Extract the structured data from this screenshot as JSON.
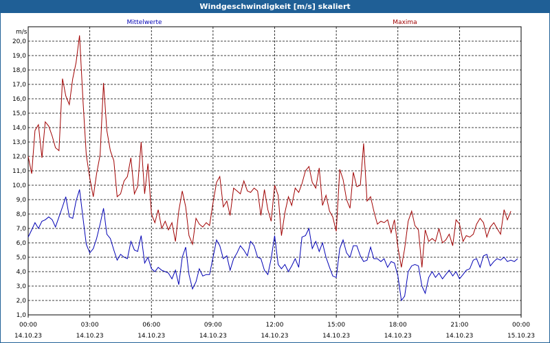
{
  "window": {
    "title": "Windgeschwindigkeit [m/s] skaliert"
  },
  "colors": {
    "titlebar": "#1f5f96",
    "mean": "#0000b4",
    "max": "#a00000",
    "grid": "#000000"
  },
  "chart_data": {
    "type": "line",
    "title": "Windgeschwindigkeit [m/s] skaliert",
    "ylabel": "m/s",
    "xlabel": "",
    "ylim": [
      1.0,
      21.0
    ],
    "y_ticks": [
      "1,0",
      "2,0",
      "3,0",
      "4,0",
      "5,0",
      "6,0",
      "7,0",
      "8,0",
      "9,0",
      "10,0",
      "11,0",
      "12,0",
      "13,0",
      "14,0",
      "15,0",
      "16,0",
      "17,0",
      "18,0",
      "19,0",
      "20,0"
    ],
    "x_ticks": [
      {
        "time": "00:00",
        "date": "14.10.23"
      },
      {
        "time": "03:00",
        "date": "14.10.23"
      },
      {
        "time": "06:00",
        "date": "14.10.23"
      },
      {
        "time": "09:00",
        "date": "14.10.23"
      },
      {
        "time": "12:00",
        "date": "14.10.23"
      },
      {
        "time": "15:00",
        "date": "14.10.23"
      },
      {
        "time": "18:00",
        "date": "14.10.23"
      },
      {
        "time": "21:00",
        "date": "14.10.23"
      },
      {
        "time": "00:00",
        "date": "15.10.23"
      }
    ],
    "x_hours_range": [
      0,
      24
    ],
    "grid": true,
    "legend_position": "top",
    "series": [
      {
        "name": "Mittelwerte",
        "color": "#0000b4",
        "points": [
          [
            0.0,
            6.4
          ],
          [
            0.17,
            6.9
          ],
          [
            0.33,
            7.4
          ],
          [
            0.5,
            7.0
          ],
          [
            0.67,
            7.5
          ],
          [
            0.83,
            7.6
          ],
          [
            1.0,
            7.8
          ],
          [
            1.17,
            7.6
          ],
          [
            1.33,
            7.1
          ],
          [
            1.5,
            7.8
          ],
          [
            1.67,
            8.5
          ],
          [
            1.83,
            9.2
          ],
          [
            2.0,
            7.8
          ],
          [
            2.17,
            7.7
          ],
          [
            2.33,
            8.9
          ],
          [
            2.5,
            9.7
          ],
          [
            2.67,
            7.7
          ],
          [
            2.83,
            5.9
          ],
          [
            3.0,
            5.3
          ],
          [
            3.17,
            5.6
          ],
          [
            3.33,
            6.3
          ],
          [
            3.5,
            7.3
          ],
          [
            3.67,
            8.4
          ],
          [
            3.83,
            6.6
          ],
          [
            4.0,
            6.3
          ],
          [
            4.17,
            5.5
          ],
          [
            4.33,
            4.8
          ],
          [
            4.5,
            5.2
          ],
          [
            4.67,
            5.0
          ],
          [
            4.83,
            4.9
          ],
          [
            5.0,
            6.1
          ],
          [
            5.17,
            5.5
          ],
          [
            5.33,
            5.4
          ],
          [
            5.5,
            6.5
          ],
          [
            5.67,
            4.6
          ],
          [
            5.83,
            5.0
          ],
          [
            6.0,
            4.2
          ],
          [
            6.17,
            4.0
          ],
          [
            6.33,
            4.3
          ],
          [
            6.5,
            4.1
          ],
          [
            6.67,
            4.0
          ],
          [
            6.83,
            3.9
          ],
          [
            7.0,
            3.5
          ],
          [
            7.17,
            4.1
          ],
          [
            7.33,
            3.1
          ],
          [
            7.5,
            5.0
          ],
          [
            7.67,
            5.7
          ],
          [
            7.83,
            3.8
          ],
          [
            8.0,
            2.8
          ],
          [
            8.17,
            3.3
          ],
          [
            8.33,
            4.2
          ],
          [
            8.5,
            3.7
          ],
          [
            8.67,
            3.8
          ],
          [
            8.83,
            3.8
          ],
          [
            9.0,
            5.0
          ],
          [
            9.17,
            6.2
          ],
          [
            9.33,
            5.8
          ],
          [
            9.5,
            4.9
          ],
          [
            9.67,
            5.1
          ],
          [
            9.83,
            4.1
          ],
          [
            10.0,
            4.9
          ],
          [
            10.17,
            5.3
          ],
          [
            10.33,
            5.8
          ],
          [
            10.5,
            5.5
          ],
          [
            10.67,
            5.1
          ],
          [
            10.83,
            6.1
          ],
          [
            11.0,
            5.8
          ],
          [
            11.17,
            5.0
          ],
          [
            11.33,
            4.9
          ],
          [
            11.5,
            4.1
          ],
          [
            11.67,
            3.8
          ],
          [
            11.83,
            4.9
          ],
          [
            12.0,
            6.5
          ],
          [
            12.17,
            4.5
          ],
          [
            12.33,
            4.2
          ],
          [
            12.5,
            4.5
          ],
          [
            12.67,
            4.0
          ],
          [
            12.83,
            4.4
          ],
          [
            13.0,
            4.9
          ],
          [
            13.17,
            4.3
          ],
          [
            13.33,
            6.4
          ],
          [
            13.5,
            6.5
          ],
          [
            13.67,
            7.0
          ],
          [
            13.83,
            5.6
          ],
          [
            14.0,
            6.1
          ],
          [
            14.17,
            5.4
          ],
          [
            14.33,
            6.0
          ],
          [
            14.5,
            5.0
          ],
          [
            14.67,
            4.3
          ],
          [
            14.83,
            3.7
          ],
          [
            15.0,
            3.6
          ],
          [
            15.17,
            5.6
          ],
          [
            15.33,
            6.2
          ],
          [
            15.5,
            5.3
          ],
          [
            15.67,
            5.0
          ],
          [
            15.83,
            5.8
          ],
          [
            16.0,
            5.8
          ],
          [
            16.17,
            5.1
          ],
          [
            16.33,
            4.7
          ],
          [
            16.5,
            4.8
          ],
          [
            16.67,
            5.7
          ],
          [
            16.83,
            4.9
          ],
          [
            17.0,
            4.9
          ],
          [
            17.17,
            4.7
          ],
          [
            17.33,
            4.9
          ],
          [
            17.5,
            4.3
          ],
          [
            17.67,
            4.7
          ],
          [
            17.83,
            4.6
          ],
          [
            18.0,
            3.7
          ],
          [
            18.17,
            2.0
          ],
          [
            18.33,
            2.3
          ],
          [
            18.5,
            4.0
          ],
          [
            18.67,
            4.4
          ],
          [
            18.83,
            4.5
          ],
          [
            19.0,
            4.4
          ],
          [
            19.17,
            3.0
          ],
          [
            19.33,
            2.5
          ],
          [
            19.5,
            3.6
          ],
          [
            19.67,
            4.0
          ],
          [
            19.83,
            3.6
          ],
          [
            20.0,
            3.9
          ],
          [
            20.17,
            3.5
          ],
          [
            20.33,
            3.8
          ],
          [
            20.5,
            4.1
          ],
          [
            20.67,
            3.7
          ],
          [
            20.83,
            4.0
          ],
          [
            21.0,
            3.5
          ],
          [
            21.17,
            3.8
          ],
          [
            21.33,
            4.1
          ],
          [
            21.5,
            4.2
          ],
          [
            21.67,
            4.8
          ],
          [
            21.83,
            4.9
          ],
          [
            22.0,
            4.3
          ],
          [
            22.17,
            5.1
          ],
          [
            22.33,
            5.2
          ],
          [
            22.5,
            4.4
          ],
          [
            22.67,
            4.7
          ],
          [
            22.83,
            4.9
          ],
          [
            23.0,
            4.8
          ],
          [
            23.17,
            5.0
          ],
          [
            23.33,
            4.7
          ],
          [
            23.5,
            4.8
          ],
          [
            23.67,
            4.7
          ],
          [
            23.83,
            4.9
          ]
        ]
      },
      {
        "name": "Maxima",
        "color": "#a00000",
        "points": [
          [
            0.0,
            12.0
          ],
          [
            0.17,
            10.8
          ],
          [
            0.33,
            13.8
          ],
          [
            0.5,
            14.2
          ],
          [
            0.67,
            11.9
          ],
          [
            0.83,
            14.4
          ],
          [
            1.0,
            14.1
          ],
          [
            1.17,
            13.4
          ],
          [
            1.33,
            12.6
          ],
          [
            1.5,
            12.4
          ],
          [
            1.67,
            17.4
          ],
          [
            1.83,
            16.2
          ],
          [
            2.0,
            15.6
          ],
          [
            2.17,
            17.4
          ],
          [
            2.33,
            18.5
          ],
          [
            2.5,
            20.4
          ],
          [
            2.67,
            15.8
          ],
          [
            2.83,
            12.1
          ],
          [
            3.0,
            10.5
          ],
          [
            3.17,
            9.2
          ],
          [
            3.33,
            10.8
          ],
          [
            3.5,
            12.1
          ],
          [
            3.67,
            17.1
          ],
          [
            3.83,
            13.8
          ],
          [
            4.0,
            12.4
          ],
          [
            4.17,
            11.7
          ],
          [
            4.33,
            9.2
          ],
          [
            4.5,
            9.4
          ],
          [
            4.67,
            10.3
          ],
          [
            4.83,
            10.6
          ],
          [
            5.0,
            11.9
          ],
          [
            5.17,
            9.4
          ],
          [
            5.33,
            9.9
          ],
          [
            5.5,
            13.0
          ],
          [
            5.67,
            9.4
          ],
          [
            5.83,
            11.5
          ],
          [
            6.0,
            8.0
          ],
          [
            6.17,
            7.4
          ],
          [
            6.33,
            8.3
          ],
          [
            6.5,
            7.0
          ],
          [
            6.67,
            7.5
          ],
          [
            6.83,
            6.9
          ],
          [
            7.0,
            7.4
          ],
          [
            7.17,
            6.1
          ],
          [
            7.33,
            8.2
          ],
          [
            7.5,
            9.6
          ],
          [
            7.67,
            8.5
          ],
          [
            7.83,
            6.5
          ],
          [
            8.0,
            5.9
          ],
          [
            8.17,
            7.7
          ],
          [
            8.33,
            7.3
          ],
          [
            8.5,
            7.1
          ],
          [
            8.67,
            7.4
          ],
          [
            8.83,
            7.2
          ],
          [
            9.0,
            8.8
          ],
          [
            9.17,
            10.2
          ],
          [
            9.33,
            10.6
          ],
          [
            9.5,
            8.5
          ],
          [
            9.67,
            8.9
          ],
          [
            9.83,
            7.9
          ],
          [
            10.0,
            9.8
          ],
          [
            10.17,
            9.6
          ],
          [
            10.33,
            9.4
          ],
          [
            10.5,
            10.3
          ],
          [
            10.67,
            9.6
          ],
          [
            10.83,
            9.5
          ],
          [
            11.0,
            9.8
          ],
          [
            11.17,
            9.6
          ],
          [
            11.33,
            7.9
          ],
          [
            11.5,
            9.7
          ],
          [
            11.67,
            8.3
          ],
          [
            11.83,
            7.5
          ],
          [
            12.0,
            10.0
          ],
          [
            12.17,
            9.3
          ],
          [
            12.33,
            6.5
          ],
          [
            12.5,
            8.1
          ],
          [
            12.67,
            9.2
          ],
          [
            12.83,
            8.6
          ],
          [
            13.0,
            9.8
          ],
          [
            13.17,
            9.5
          ],
          [
            13.33,
            10.1
          ],
          [
            13.5,
            11.0
          ],
          [
            13.67,
            11.3
          ],
          [
            13.83,
            10.2
          ],
          [
            14.0,
            9.8
          ],
          [
            14.17,
            11.2
          ],
          [
            14.33,
            8.6
          ],
          [
            14.5,
            9.3
          ],
          [
            14.67,
            8.2
          ],
          [
            14.83,
            7.8
          ],
          [
            15.0,
            6.8
          ],
          [
            15.17,
            11.1
          ],
          [
            15.33,
            10.4
          ],
          [
            15.5,
            9.0
          ],
          [
            15.67,
            8.4
          ],
          [
            15.83,
            10.9
          ],
          [
            16.0,
            9.9
          ],
          [
            16.17,
            10.0
          ],
          [
            16.33,
            12.9
          ],
          [
            16.5,
            8.9
          ],
          [
            16.67,
            9.2
          ],
          [
            16.83,
            8.2
          ],
          [
            17.0,
            7.3
          ],
          [
            17.17,
            7.5
          ],
          [
            17.33,
            7.4
          ],
          [
            17.5,
            7.6
          ],
          [
            17.67,
            6.7
          ],
          [
            17.83,
            7.6
          ],
          [
            18.0,
            5.7
          ],
          [
            18.17,
            4.3
          ],
          [
            18.33,
            5.6
          ],
          [
            18.5,
            7.5
          ],
          [
            18.67,
            8.2
          ],
          [
            18.83,
            7.2
          ],
          [
            19.0,
            6.9
          ],
          [
            19.17,
            4.3
          ],
          [
            19.33,
            6.9
          ],
          [
            19.5,
            6.1
          ],
          [
            19.67,
            6.3
          ],
          [
            19.83,
            6.1
          ],
          [
            20.0,
            7.0
          ],
          [
            20.17,
            6.0
          ],
          [
            20.33,
            6.2
          ],
          [
            20.5,
            6.6
          ],
          [
            20.67,
            5.8
          ],
          [
            20.83,
            7.6
          ],
          [
            21.0,
            7.3
          ],
          [
            21.17,
            6.1
          ],
          [
            21.33,
            6.5
          ],
          [
            21.5,
            6.4
          ],
          [
            21.67,
            6.6
          ],
          [
            21.83,
            7.3
          ],
          [
            22.0,
            7.7
          ],
          [
            22.17,
            7.4
          ],
          [
            22.33,
            6.4
          ],
          [
            22.5,
            7.1
          ],
          [
            22.67,
            7.4
          ],
          [
            22.83,
            7.0
          ],
          [
            23.0,
            6.6
          ],
          [
            23.17,
            8.3
          ],
          [
            23.33,
            7.6
          ],
          [
            23.5,
            8.2
          ]
        ]
      }
    ]
  }
}
